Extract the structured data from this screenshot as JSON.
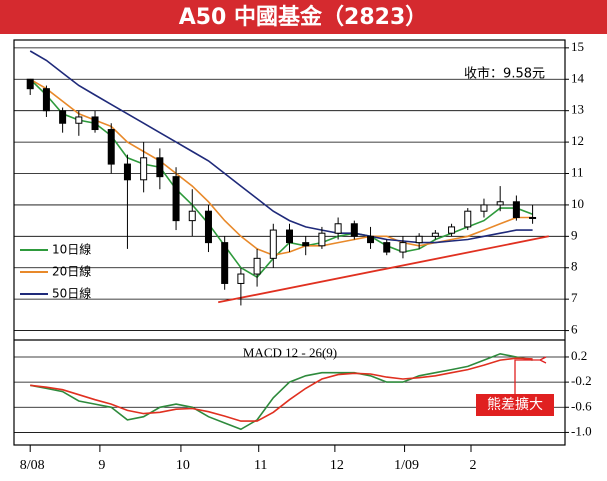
{
  "chart_data": [
    {
      "type": "candlestick",
      "title": "A50 中國基金（2823）",
      "annotation": "收市：9.58元",
      "x": [
        0,
        1,
        2,
        3,
        4,
        5,
        6,
        7,
        8,
        9,
        10,
        11,
        12,
        13,
        14,
        15,
        16,
        17,
        18,
        19,
        20,
        21,
        22,
        23,
        24,
        25,
        26,
        27,
        28,
        29,
        30,
        31
      ],
      "open": [
        14.0,
        13.7,
        13.0,
        12.6,
        12.8,
        12.4,
        11.3,
        10.8,
        11.5,
        10.9,
        9.5,
        9.8,
        8.8,
        7.5,
        7.8,
        8.3,
        9.2,
        8.8,
        8.7,
        9.1,
        9.4,
        9.0,
        8.8,
        8.5,
        8.8,
        9.0,
        9.1,
        9.3,
        9.8,
        10.0,
        10.1,
        9.6
      ],
      "high": [
        14.0,
        13.8,
        13.1,
        13.0,
        13.0,
        12.6,
        11.6,
        12.0,
        11.8,
        11.2,
        10.5,
        10.0,
        9.0,
        8.0,
        8.6,
        9.4,
        9.4,
        9.0,
        9.3,
        9.6,
        9.5,
        9.3,
        8.9,
        9.0,
        9.1,
        9.2,
        9.4,
        9.9,
        10.2,
        10.6,
        10.3,
        10.0
      ],
      "low": [
        13.5,
        12.8,
        12.3,
        12.2,
        12.3,
        11.0,
        8.6,
        10.4,
        10.5,
        9.2,
        9.0,
        8.5,
        7.3,
        6.8,
        7.4,
        8.0,
        8.5,
        8.4,
        8.6,
        8.9,
        8.9,
        8.6,
        8.4,
        8.3,
        8.6,
        8.9,
        9.0,
        9.2,
        9.6,
        9.8,
        9.5,
        9.4
      ],
      "close": [
        13.7,
        13.0,
        12.6,
        12.8,
        12.4,
        11.3,
        10.8,
        11.5,
        10.9,
        9.5,
        9.8,
        8.8,
        7.5,
        7.8,
        8.3,
        9.2,
        8.8,
        8.7,
        9.1,
        9.4,
        9.0,
        8.8,
        8.5,
        8.8,
        9.0,
        9.1,
        9.3,
        9.8,
        10.0,
        10.1,
        9.6,
        9.58
      ],
      "candle_color": "#000000",
      "series": [
        {
          "name": "10日線",
          "color": "#2e9a3c",
          "values": [
            14.0,
            13.5,
            12.9,
            12.7,
            12.6,
            12.2,
            11.5,
            11.3,
            11.2,
            10.5,
            10.0,
            9.4,
            8.7,
            8.0,
            7.7,
            8.3,
            8.8,
            8.7,
            8.8,
            9.0,
            9.1,
            9.0,
            8.7,
            8.5,
            8.6,
            8.9,
            9.1,
            9.3,
            9.5,
            9.9,
            9.9,
            9.7
          ]
        },
        {
          "name": "20日線",
          "color": "#e8892a",
          "values": [
            14.0,
            13.7,
            13.3,
            12.9,
            12.7,
            12.5,
            12.0,
            11.7,
            11.4,
            11.0,
            10.6,
            10.1,
            9.5,
            9.0,
            8.6,
            8.4,
            8.5,
            8.7,
            8.7,
            8.8,
            8.9,
            9.0,
            9.0,
            8.8,
            8.7,
            8.8,
            8.9,
            9.0,
            9.2,
            9.4,
            9.6,
            9.6
          ]
        },
        {
          "name": "50日線",
          "color": "#1f2a7a",
          "values": [
            14.9,
            14.6,
            14.2,
            13.8,
            13.5,
            13.2,
            12.9,
            12.6,
            12.3,
            12.0,
            11.7,
            11.4,
            11.0,
            10.6,
            10.2,
            9.8,
            9.5,
            9.3,
            9.2,
            9.1,
            9.1,
            9.0,
            8.9,
            8.85,
            8.8,
            8.8,
            8.85,
            8.9,
            9.0,
            9.1,
            9.2,
            9.2
          ]
        }
      ],
      "trendline": {
        "color": "#e03020",
        "x": [
          11.6,
          32
        ],
        "values": [
          6.9,
          9.0
        ]
      },
      "xlim": [
        -1,
        33
      ],
      "ylim": [
        5.7,
        15.25
      ],
      "xticks": [
        {
          "value": 0,
          "label": "8/08"
        },
        {
          "value": 4.3,
          "label": "9"
        },
        {
          "value": 9.3,
          "label": "10"
        },
        {
          "value": 14.1,
          "label": "11"
        },
        {
          "value": 18.8,
          "label": "12"
        },
        {
          "value": 23.1,
          "label": "1/09"
        },
        {
          "value": 27.2,
          "label": "2"
        }
      ],
      "yticks": [
        6,
        7,
        8,
        9,
        10,
        11,
        12,
        13,
        14,
        15
      ],
      "grid": true,
      "legend": "lower left"
    },
    {
      "type": "line",
      "title": "MACD 12 - 26(9)",
      "annotation": "熊差擴大",
      "annotation_color": "#e02020",
      "x": [
        0,
        1,
        2,
        3,
        4,
        5,
        6,
        7,
        8,
        9,
        10,
        11,
        12,
        13,
        14,
        15,
        16,
        17,
        18,
        19,
        20,
        21,
        22,
        23,
        24,
        25,
        26,
        27,
        28,
        29,
        30,
        31
      ],
      "series": [
        {
          "color": "#2e8a3c",
          "values": [
            -0.25,
            -0.3,
            -0.35,
            -0.5,
            -0.55,
            -0.6,
            -0.8,
            -0.75,
            -0.6,
            -0.55,
            -0.6,
            -0.75,
            -0.85,
            -0.95,
            -0.8,
            -0.45,
            -0.2,
            -0.1,
            -0.05,
            -0.05,
            -0.05,
            -0.1,
            -0.2,
            -0.2,
            -0.1,
            -0.05,
            0.0,
            0.05,
            0.15,
            0.25,
            0.2,
            0.15
          ]
        },
        {
          "color": "#e03020",
          "values": [
            -0.25,
            -0.28,
            -0.32,
            -0.4,
            -0.48,
            -0.55,
            -0.65,
            -0.7,
            -0.68,
            -0.63,
            -0.62,
            -0.67,
            -0.74,
            -0.82,
            -0.82,
            -0.68,
            -0.48,
            -0.3,
            -0.15,
            -0.08,
            -0.06,
            -0.07,
            -0.12,
            -0.15,
            -0.13,
            -0.1,
            -0.05,
            0.0,
            0.07,
            0.15,
            0.18,
            0.17
          ]
        }
      ],
      "xlim": [
        -1,
        33
      ],
      "ylim": [
        -1.2,
        0.47
      ],
      "yticks": [
        0.2,
        -0.2,
        -0.6,
        {
          "value": -1,
          "label": "-1.0"
        }
      ],
      "grid": true
    }
  ]
}
